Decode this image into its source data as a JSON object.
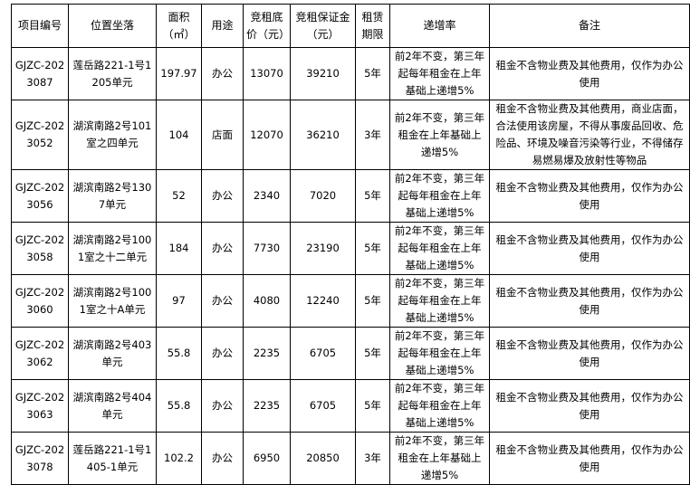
{
  "headers": [
    "项目编号",
    "位置坐落",
    "面积（㎡）",
    "用途",
    "竞租底价（元）",
    "竞租保证金（元）",
    "租赁期限",
    "递增率",
    "备注"
  ],
  "rows": [
    {
      "id": "GJZC-2023087",
      "location": "莲岳路221-1号1205单元",
      "area": "197.97",
      "use": "办公",
      "base_price": "13070",
      "deposit": "39210",
      "term": "5年",
      "increase": "前2年不变，第三年起每年租金在上年基础上递增5%",
      "note": "租金不含物业费及其他费用，仅作为办公使用"
    },
    {
      "id": "GJZC-2023052",
      "location": "湖滨南路2号101室之四单元",
      "area": "104",
      "use": "店面",
      "base_price": "12070",
      "deposit": "36210",
      "term": "3年",
      "increase": "前2年不变，第三年租金在上年基础上递增5%",
      "note": "租金不含物业费及其他费用，商业店面，合法使用该房屋，不得从事废品回收、危险品、环境及噪音污染等行业，不得储存易燃易爆及放射性等物品"
    },
    {
      "id": "GJZC-2023056",
      "location": "湖滨南路2号1307单元",
      "area": "52",
      "use": "办公",
      "base_price": "2340",
      "deposit": "7020",
      "term": "5年",
      "increase": "前2年不变，第三年起每年租金在上年基础上递增5%",
      "note": "租金不含物业费及其他费用，仅作为办公使用"
    },
    {
      "id": "GJZC-2023058",
      "location": "湖滨南路2号1001室之十二单元",
      "area": "184",
      "use": "办公",
      "base_price": "7730",
      "deposit": "23190",
      "term": "5年",
      "increase": "前2年不变，第三年起每年租金在上年基础上递增5%",
      "note": "租金不含物业费及其他费用，仅作为办公使用"
    },
    {
      "id": "GJZC-2023060",
      "location": "湖滨南路2号1001室之十A单元",
      "area": "97",
      "use": "办公",
      "base_price": "4080",
      "deposit": "12240",
      "term": "5年",
      "increase": "前2年不变，第三年起每年租金在上年基础上递增5%",
      "note": "租金不含物业费及其他费用，仅作为办公使用"
    },
    {
      "id": "GJZC-2023062",
      "location": "湖滨南路2号403单元",
      "area": "55.8",
      "use": "办公",
      "base_price": "2235",
      "deposit": "6705",
      "term": "5年",
      "increase": "前2年不变，第三年起每年租金在上年基础上递增5%",
      "note": "租金不含物业费及其他费用，仅作为办公使用"
    },
    {
      "id": "GJZC-2023063",
      "location": "湖滨南路2号404单元",
      "area": "55.8",
      "use": "办公",
      "base_price": "2235",
      "deposit": "6705",
      "term": "5年",
      "increase": "前2年不变，第三年起每年租金在上年基础上递增5%",
      "note": "租金不含物业费及其他费用，仅作为办公使用"
    },
    {
      "id": "GJZC-2023078",
      "location": "莲岳路221-1号1405-1单元",
      "area": "102.2",
      "use": "办公",
      "base_price": "6950",
      "deposit": "20850",
      "term": "3年",
      "increase": "前2年不变，第三年租金在上年基础上递增5%",
      "note": "租金不含物业费及其他费用，仅作为办公使用"
    }
  ]
}
